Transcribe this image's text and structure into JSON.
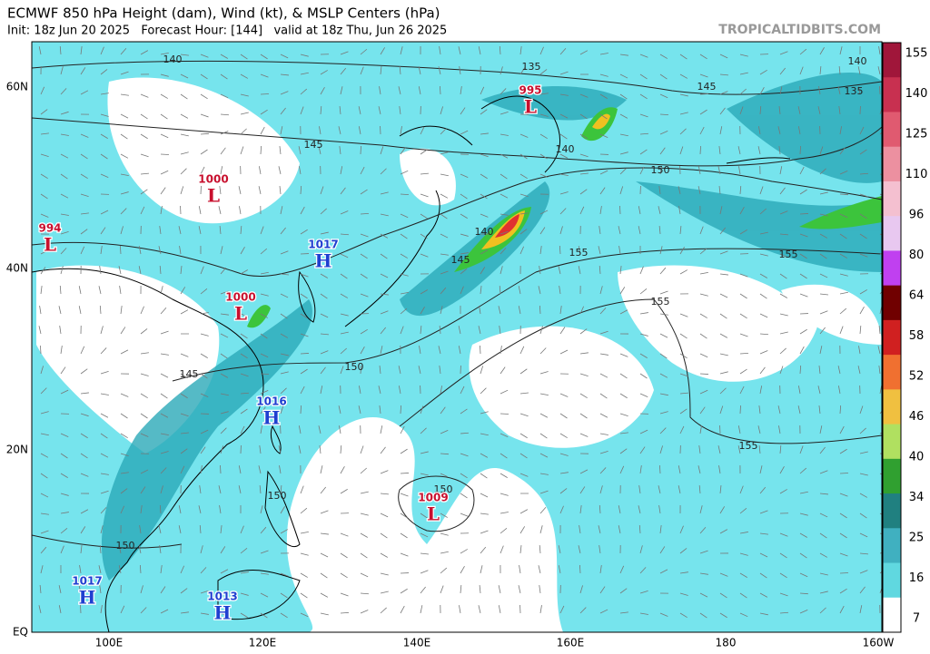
{
  "header": {
    "title": "ECMWF 850 hPa Height (dam), Wind (kt), & MSLP Centers (hPa)",
    "subtitle": "Init: 18z Jun 20 2025   Forecast Hour: [144]   valid at 18z Thu, Jun 26 2025",
    "brand": "TROPICALTIDBITS.COM"
  },
  "map": {
    "lat_labels": [
      "60N",
      "40N",
      "20N",
      "EQ"
    ],
    "lon_labels": [
      "100E",
      "120E",
      "140E",
      "160E",
      "180",
      "160W"
    ],
    "pressure_centers": [
      {
        "value": "995",
        "symbol": "L"
      },
      {
        "value": "1000",
        "symbol": "L"
      },
      {
        "value": "994",
        "symbol": "L"
      },
      {
        "value": "1017",
        "symbol": "H"
      },
      {
        "value": "1000",
        "symbol": "L"
      },
      {
        "value": "1016",
        "symbol": "H"
      },
      {
        "value": "1009",
        "symbol": "L"
      },
      {
        "value": "1017",
        "symbol": "H"
      },
      {
        "value": "1013",
        "symbol": "H"
      }
    ],
    "contour_labels": [
      "140",
      "135",
      "145",
      "140",
      "135",
      "145",
      "140",
      "150",
      "140",
      "155",
      "145",
      "155",
      "155",
      "150",
      "145",
      "155",
      "150",
      "150",
      "150"
    ]
  },
  "colorbar": {
    "labels": [
      155,
      140,
      125,
      110,
      96,
      80,
      64,
      58,
      52,
      46,
      40,
      34,
      25,
      16,
      7
    ]
  }
}
